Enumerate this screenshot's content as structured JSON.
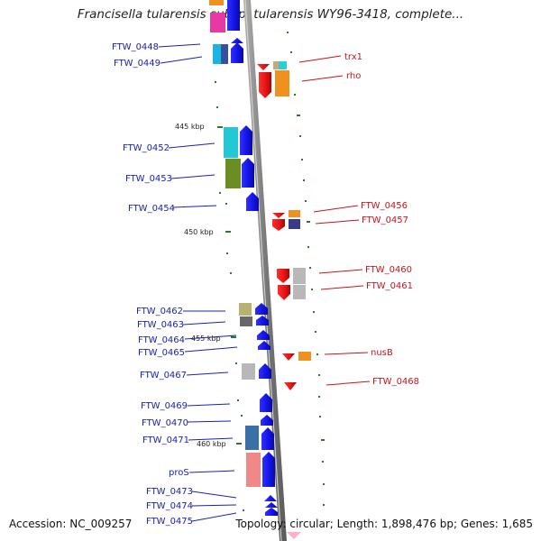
{
  "title": "Francisella tularensis subsp. tularensis WY96-3418, complete...",
  "footer": {
    "accession": "Accession: NC_009257",
    "info": "Topology: circular; Length: 1,898,476 bp; Genes: 1,685"
  },
  "scale_ticks": [
    "445 kbp",
    "450 kbp",
    "455 kbp",
    "460 kbp"
  ],
  "left_labels": [
    "FTW_0448",
    "FTW_0449",
    "FTW_0452",
    "FTW_0453",
    "FTW_0454",
    "FTW_0462",
    "FTW_0463",
    "FTW_0464",
    "FTW_0465",
    "FTW_0467",
    "FTW_0469",
    "FTW_0470",
    "FTW_0471",
    "proS",
    "FTW_0473",
    "FTW_0474",
    "FTW_0475"
  ],
  "right_labels": [
    "trx1",
    "rho",
    "FTW_0456",
    "FTW_0457",
    "FTW_0460",
    "FTW_0461",
    "nusB",
    "FTW_0468"
  ],
  "colors": {
    "forward_strand": "#1010e6",
    "reverse_strand": "#e61010",
    "backbone": "#8a8a8a",
    "label_left": "#1a22b0",
    "label_right": "#c8141b",
    "tick": "#2a7a2a"
  }
}
